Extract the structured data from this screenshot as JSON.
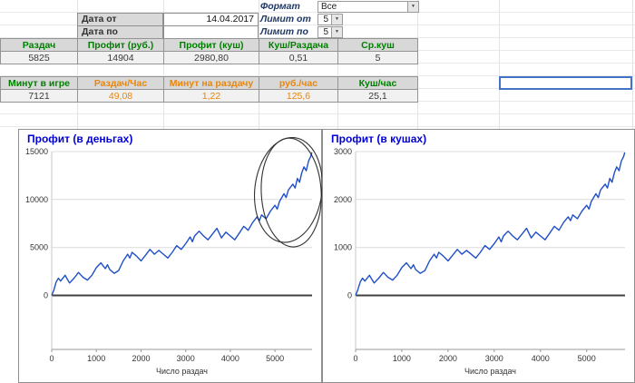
{
  "filters": {
    "format_label": "Формат",
    "format_value": "Все",
    "date_from_label": "Дата от",
    "date_from_value": "14.04.2017",
    "date_to_label": "Дата по",
    "date_to_value": "",
    "limit_from_label": "Лимит от",
    "limit_from_value": "5",
    "limit_to_label": "Лимит по",
    "limit_to_value": "5"
  },
  "stats_primary": {
    "headers": [
      "Раздач",
      "Профит (руб.)",
      "Профит (куш)",
      "Куш/Раздача",
      "Ср.куш"
    ],
    "values": [
      "5825",
      "14904",
      "2980,80",
      "0,51",
      "5"
    ]
  },
  "stats_rates": {
    "headers": [
      "Минут в игре",
      "Раздач/Час",
      "Минут на раздачу",
      "руб./час",
      "Куш/час"
    ],
    "values": [
      "7121",
      "49,08",
      "1,22",
      "125,6",
      "25,1"
    ]
  },
  "colors": {
    "header_green": "#008000",
    "header_orange": "#E8860D",
    "chart_title_blue": "#0000D8",
    "line_blue": "#1F4FC8",
    "selection_blue": "#4472C4"
  },
  "chart_data": [
    {
      "type": "line",
      "title": "Профит (в деньгах)",
      "xlabel": "Число раздач",
      "xlim": [
        0,
        5830
      ],
      "ylim": [
        -5625,
        15000
      ],
      "x_ticks": [
        0,
        1000,
        2000,
        3000,
        4000,
        5000
      ],
      "y_ticks": [
        0,
        5000,
        10000,
        15000
      ],
      "final_value": 14904,
      "x": [
        0,
        50,
        100,
        150,
        200,
        300,
        350,
        400,
        500,
        600,
        700,
        800,
        900,
        1000,
        1100,
        1200,
        1250,
        1300,
        1400,
        1500,
        1600,
        1700,
        1750,
        1800,
        1900,
        2000,
        2100,
        2200,
        2300,
        2400,
        2500,
        2600,
        2700,
        2800,
        2900,
        3000,
        3100,
        3150,
        3200,
        3300,
        3400,
        3500,
        3600,
        3700,
        3750,
        3800,
        3900,
        4000,
        4100,
        4200,
        4300,
        4400,
        4500,
        4600,
        4650,
        4700,
        4800,
        4900,
        5000,
        5050,
        5100,
        5200,
        5250,
        5300,
        5400,
        5450,
        5500,
        5550,
        5600,
        5650,
        5700,
        5750,
        5800,
        5825
      ],
      "y": [
        0,
        600,
        1400,
        1800,
        1500,
        2100,
        1700,
        1300,
        1800,
        2400,
        1900,
        1600,
        2100,
        2900,
        3400,
        2800,
        3200,
        2700,
        2300,
        2600,
        3600,
        4300,
        3900,
        4500,
        4100,
        3600,
        4200,
        4800,
        4300,
        4700,
        4300,
        3900,
        4500,
        5200,
        4800,
        5400,
        6100,
        5600,
        6200,
        6700,
        6200,
        5800,
        6400,
        7000,
        6500,
        6000,
        6600,
        6200,
        5800,
        6500,
        7200,
        6800,
        7600,
        8200,
        7800,
        8400,
        8000,
        8800,
        9400,
        9000,
        9800,
        10600,
        10200,
        11000,
        11600,
        11200,
        12200,
        11800,
        12800,
        13400,
        13000,
        14000,
        14500,
        14904
      ],
      "annotation": {
        "shape": "hand-drawn-ellipse",
        "x_center": 5300,
        "y_center": 11000,
        "note": "pencil circle around final upswing"
      }
    },
    {
      "type": "line",
      "title": "Профит (в кушах)",
      "xlabel": "Число раздач",
      "xlim": [
        0,
        5830
      ],
      "ylim": [
        -1125,
        3000
      ],
      "x_ticks": [
        0,
        1000,
        2000,
        3000,
        4000,
        5000
      ],
      "y_ticks": [
        0,
        1000,
        2000,
        3000
      ],
      "final_value": 2980.8,
      "x": [
        0,
        50,
        100,
        150,
        200,
        300,
        350,
        400,
        500,
        600,
        700,
        800,
        900,
        1000,
        1100,
        1200,
        1250,
        1300,
        1400,
        1500,
        1600,
        1700,
        1750,
        1800,
        1900,
        2000,
        2100,
        2200,
        2300,
        2400,
        2500,
        2600,
        2700,
        2800,
        2900,
        3000,
        3100,
        3150,
        3200,
        3300,
        3400,
        3500,
        3600,
        3700,
        3750,
        3800,
        3900,
        4000,
        4100,
        4200,
        4300,
        4400,
        4500,
        4600,
        4650,
        4700,
        4800,
        4900,
        5000,
        5050,
        5100,
        5200,
        5250,
        5300,
        5400,
        5450,
        5500,
        5550,
        5600,
        5650,
        5700,
        5750,
        5800,
        5825
      ],
      "y": [
        0,
        120,
        280,
        360,
        300,
        420,
        340,
        260,
        360,
        480,
        380,
        320,
        420,
        580,
        680,
        560,
        640,
        540,
        460,
        520,
        720,
        860,
        780,
        900,
        820,
        720,
        840,
        960,
        860,
        940,
        860,
        780,
        900,
        1040,
        960,
        1080,
        1220,
        1120,
        1240,
        1340,
        1240,
        1160,
        1280,
        1400,
        1300,
        1200,
        1320,
        1240,
        1160,
        1300,
        1440,
        1360,
        1520,
        1640,
        1560,
        1680,
        1600,
        1760,
        1880,
        1800,
        1960,
        2120,
        2040,
        2200,
        2320,
        2240,
        2440,
        2360,
        2560,
        2680,
        2600,
        2800,
        2900,
        2980.8
      ]
    }
  ]
}
